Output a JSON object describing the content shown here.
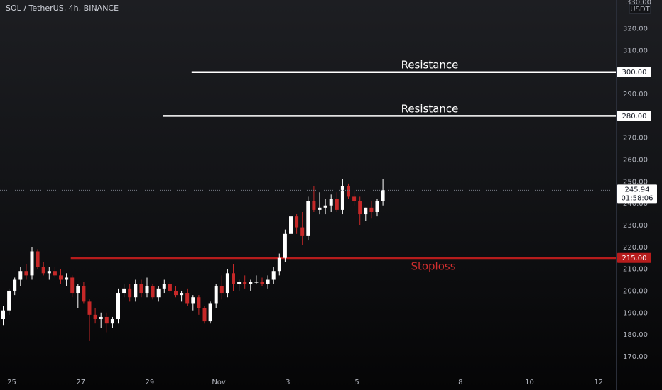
{
  "chart_data": {
    "type": "candlestick",
    "title": "SOL / TetherUS, 4h, BINANCE",
    "currency": "USDT",
    "y_top_partial_label": "330.00",
    "ylim": [
      163,
      333
    ],
    "y_ticks": [
      "320.00",
      "310.00",
      "300.00",
      "290.00",
      "280.00",
      "270.00",
      "260.00",
      "250.00",
      "240.00",
      "230.00",
      "220.00",
      "210.00",
      "200.00",
      "190.00",
      "180.00",
      "170.00"
    ],
    "x_labels": [
      {
        "label": "25",
        "bar": 0
      },
      {
        "label": "27",
        "bar": 12
      },
      {
        "label": "29",
        "bar": 24
      },
      {
        "label": "Nov",
        "bar": 36
      },
      {
        "label": "3",
        "bar": 48
      },
      {
        "label": "5",
        "bar": 60
      },
      {
        "label": "8",
        "bar": 78
      },
      {
        "label": "10",
        "bar": 90
      },
      {
        "label": "12",
        "bar": 102
      }
    ],
    "colors": {
      "up": "#ffffff",
      "down": "#c62828",
      "stoploss": "#b71c1c",
      "resistance": "#ffffff",
      "last_price": "#787b86"
    },
    "last_price": {
      "value": "245.94",
      "countdown": "01:58:06",
      "level": 245.94
    },
    "levels": [
      {
        "name": "Resistance",
        "price": 300,
        "label": "300.00",
        "start_bar": 33,
        "type": "resistance"
      },
      {
        "name": "Resistance",
        "price": 280,
        "label": "280.00",
        "start_bar": 28,
        "type": "resistance"
      },
      {
        "name": "Stoploss",
        "price": 215,
        "label": "215.00",
        "start_bar": 12,
        "type": "stoploss"
      }
    ],
    "candles": [
      [
        187,
        193,
        184,
        191
      ],
      [
        191,
        201,
        189,
        200
      ],
      [
        200,
        206,
        198,
        205
      ],
      [
        205,
        211,
        202,
        209
      ],
      [
        209,
        212,
        205,
        207
      ],
      [
        207,
        220,
        205,
        218
      ],
      [
        218,
        219,
        210,
        211
      ],
      [
        211,
        213,
        207,
        208
      ],
      [
        208,
        211,
        205,
        209
      ],
      [
        209,
        211,
        206,
        207
      ],
      [
        207,
        210,
        203,
        205
      ],
      [
        205,
        208,
        202,
        206
      ],
      [
        206,
        207,
        197,
        199
      ],
      [
        199,
        203,
        192,
        202
      ],
      [
        202,
        204,
        194,
        195
      ],
      [
        195,
        196,
        177,
        189
      ],
      [
        189,
        192,
        185,
        187
      ],
      [
        187,
        190,
        183,
        188
      ],
      [
        188,
        190,
        181,
        185
      ],
      [
        185,
        188,
        183,
        187
      ],
      [
        187,
        201,
        185,
        199
      ],
      [
        199,
        203,
        197,
        201
      ],
      [
        201,
        203,
        195,
        197
      ],
      [
        197,
        205,
        195,
        203
      ],
      [
        203,
        205,
        197,
        199
      ],
      [
        199,
        206,
        197,
        202
      ],
      [
        202,
        203,
        196,
        197
      ],
      [
        197,
        202,
        195,
        201
      ],
      [
        201,
        205,
        199,
        203
      ],
      [
        203,
        204,
        199,
        200
      ],
      [
        200,
        202,
        197,
        198
      ],
      [
        198,
        200,
        195,
        199
      ],
      [
        199,
        201,
        193,
        194
      ],
      [
        194,
        198,
        191,
        197
      ],
      [
        197,
        198,
        189,
        192
      ],
      [
        192,
        193,
        185,
        186
      ],
      [
        186,
        195,
        185,
        194
      ],
      [
        194,
        203,
        192,
        202
      ],
      [
        202,
        207,
        196,
        199
      ],
      [
        199,
        210,
        197,
        208
      ],
      [
        208,
        212,
        200,
        203
      ],
      [
        203,
        205,
        200,
        204
      ],
      [
        204,
        207,
        201,
        203
      ],
      [
        203,
        205,
        200,
        204
      ],
      [
        204,
        207,
        203,
        204
      ],
      [
        204,
        206,
        202,
        203
      ],
      [
        203,
        207,
        201,
        205
      ],
      [
        205,
        211,
        203,
        209
      ],
      [
        209,
        217,
        207,
        215
      ],
      [
        215,
        228,
        213,
        226
      ],
      [
        226,
        236,
        224,
        234
      ],
      [
        234,
        235,
        226,
        229
      ],
      [
        229,
        236,
        221,
        225
      ],
      [
        225,
        243,
        223,
        241
      ],
      [
        241,
        248,
        236,
        237
      ],
      [
        237,
        245,
        235,
        238
      ],
      [
        238,
        242,
        235,
        239
      ],
      [
        239,
        244,
        236,
        242
      ],
      [
        242,
        245,
        236,
        237
      ],
      [
        237,
        251,
        235,
        248
      ],
      [
        248,
        249,
        242,
        243
      ],
      [
        243,
        246,
        239,
        241
      ],
      [
        241,
        243,
        230,
        235
      ],
      [
        235,
        238,
        232,
        238
      ],
      [
        238,
        241,
        233,
        236
      ],
      [
        236,
        242,
        234,
        241
      ],
      [
        241,
        251,
        239,
        246
      ]
    ]
  }
}
